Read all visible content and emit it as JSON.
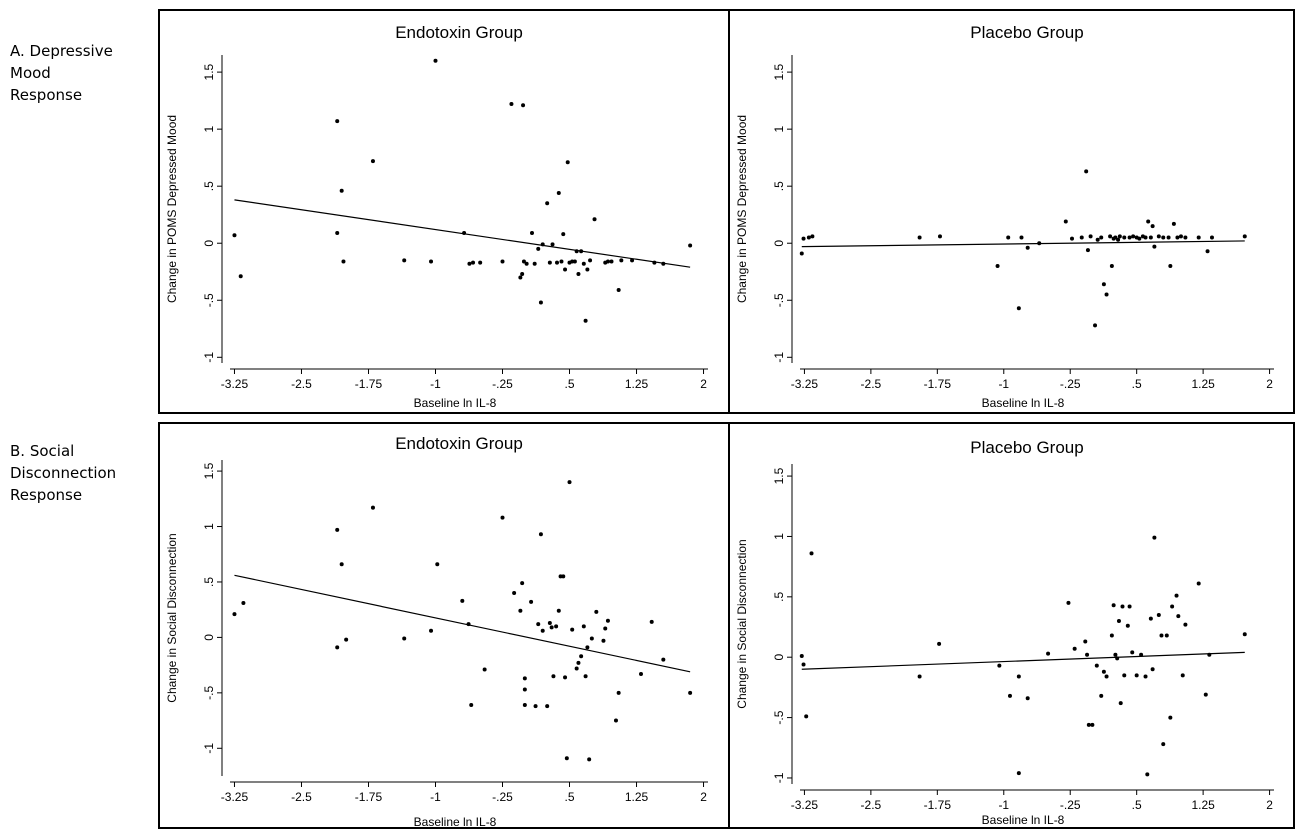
{
  "row_labels": {
    "a": [
      "A. Depressive",
      "Mood",
      "Response"
    ],
    "b": [
      "B. Social",
      "Disconnection",
      "Response"
    ]
  },
  "chart_data": [
    {
      "type": "scatter",
      "title": "Endotoxin Group",
      "xlabel": "Baseline ln IL-8",
      "ylabel": "Change in POMS Depressed Mood",
      "xlim": [
        -3.3,
        2.05
      ],
      "ylim": [
        -1.05,
        1.65
      ],
      "xticks": [
        -3.25,
        -2.5,
        -1.75,
        -1,
        -0.25,
        0.5,
        1.25,
        2
      ],
      "xtick_labels": [
        "-3.25",
        "-2.5",
        "-1.75",
        "-1",
        "-.25",
        ".5",
        "1.25",
        "2"
      ],
      "yticks": [
        -1,
        -0.5,
        0,
        0.5,
        1,
        1.5
      ],
      "ytick_labels": [
        "-1",
        "-.5",
        "0",
        ".5",
        "1",
        "1.5"
      ],
      "fit_line": [
        [
          -3.25,
          0.38
        ],
        [
          1.85,
          -0.21
        ]
      ],
      "points": [
        [
          -3.25,
          0.07
        ],
        [
          -3.18,
          -0.29
        ],
        [
          -2.1,
          1.07
        ],
        [
          -2.05,
          0.46
        ],
        [
          -2.1,
          0.09
        ],
        [
          -2.03,
          -0.16
        ],
        [
          -1.7,
          0.72
        ],
        [
          -1.35,
          -0.15
        ],
        [
          -1.05,
          -0.16
        ],
        [
          -1.0,
          1.6
        ],
        [
          -0.68,
          0.09
        ],
        [
          -0.62,
          -0.18
        ],
        [
          -0.58,
          -0.17
        ],
        [
          -0.5,
          -0.17
        ],
        [
          -0.25,
          -0.16
        ],
        [
          -0.15,
          1.22
        ],
        [
          -0.02,
          1.21
        ],
        [
          -0.05,
          -0.3
        ],
        [
          -0.03,
          -0.27
        ],
        [
          -0.01,
          -0.16
        ],
        [
          0.02,
          -0.18
        ],
        [
          0.08,
          0.09
        ],
        [
          0.11,
          -0.18
        ],
        [
          0.15,
          -0.05
        ],
        [
          0.18,
          -0.52
        ],
        [
          0.2,
          -0.01
        ],
        [
          0.25,
          0.35
        ],
        [
          0.28,
          -0.17
        ],
        [
          0.31,
          -0.01
        ],
        [
          0.36,
          -0.17
        ],
        [
          0.38,
          0.44
        ],
        [
          0.41,
          -0.16
        ],
        [
          0.43,
          0.08
        ],
        [
          0.45,
          -0.23
        ],
        [
          0.48,
          0.71
        ],
        [
          0.5,
          -0.17
        ],
        [
          0.53,
          -0.16
        ],
        [
          0.56,
          -0.16
        ],
        [
          0.58,
          -0.07
        ],
        [
          0.6,
          -0.27
        ],
        [
          0.63,
          -0.07
        ],
        [
          0.66,
          -0.18
        ],
        [
          0.68,
          -0.68
        ],
        [
          0.7,
          -0.23
        ],
        [
          0.73,
          -0.15
        ],
        [
          0.78,
          0.21
        ],
        [
          0.9,
          -0.17
        ],
        [
          0.93,
          -0.16
        ],
        [
          0.97,
          -0.16
        ],
        [
          1.05,
          -0.41
        ],
        [
          1.08,
          -0.15
        ],
        [
          1.2,
          -0.15
        ],
        [
          1.45,
          -0.17
        ],
        [
          1.55,
          -0.18
        ],
        [
          1.85,
          -0.02
        ]
      ]
    },
    {
      "type": "scatter",
      "title": "Placebo Group",
      "xlabel": "Baseline ln IL-8",
      "ylabel": "Change in POMS Depressed Mood",
      "xlim": [
        -3.3,
        2.05
      ],
      "ylim": [
        -1.05,
        1.65
      ],
      "xticks": [
        -3.25,
        -2.5,
        -1.75,
        -1,
        -0.25,
        0.5,
        1.25,
        2
      ],
      "xtick_labels": [
        "-3.25",
        "-2.5",
        "-1.75",
        "-1",
        "-.25",
        ".5",
        "1.25",
        "2"
      ],
      "yticks": [
        -1,
        -0.5,
        0,
        0.5,
        1,
        1.5
      ],
      "ytick_labels": [
        "-1",
        "-.5",
        "0",
        ".5",
        "1",
        "1.5"
      ],
      "fit_line": [
        [
          -3.28,
          -0.03
        ],
        [
          1.72,
          0.02
        ]
      ],
      "points": [
        [
          -3.28,
          -0.09
        ],
        [
          -3.26,
          0.04
        ],
        [
          -3.2,
          0.05
        ],
        [
          -3.16,
          0.06
        ],
        [
          -1.95,
          0.05
        ],
        [
          -1.72,
          0.06
        ],
        [
          -1.07,
          -0.2
        ],
        [
          -0.95,
          0.05
        ],
        [
          -0.8,
          0.05
        ],
        [
          -0.83,
          -0.57
        ],
        [
          -0.73,
          -0.04
        ],
        [
          -0.6,
          0.0
        ],
        [
          -0.3,
          0.19
        ],
        [
          -0.23,
          0.04
        ],
        [
          -0.12,
          0.05
        ],
        [
          -0.07,
          0.63
        ],
        [
          -0.05,
          -0.06
        ],
        [
          -0.02,
          0.06
        ],
        [
          0.03,
          -0.72
        ],
        [
          0.06,
          0.03
        ],
        [
          0.1,
          0.05
        ],
        [
          0.13,
          -0.36
        ],
        [
          0.16,
          -0.45
        ],
        [
          0.2,
          0.06
        ],
        [
          0.22,
          -0.2
        ],
        [
          0.24,
          0.04
        ],
        [
          0.26,
          0.05
        ],
        [
          0.29,
          0.03
        ],
        [
          0.31,
          0.06
        ],
        [
          0.36,
          0.05
        ],
        [
          0.42,
          0.05
        ],
        [
          0.46,
          0.06
        ],
        [
          0.5,
          0.05
        ],
        [
          0.53,
          0.04
        ],
        [
          0.57,
          0.06
        ],
        [
          0.6,
          0.05
        ],
        [
          0.63,
          0.19
        ],
        [
          0.66,
          0.05
        ],
        [
          0.68,
          0.15
        ],
        [
          0.7,
          -0.03
        ],
        [
          0.75,
          0.06
        ],
        [
          0.8,
          0.05
        ],
        [
          0.86,
          0.05
        ],
        [
          0.88,
          -0.2
        ],
        [
          0.92,
          0.17
        ],
        [
          0.96,
          0.05
        ],
        [
          1.0,
          0.06
        ],
        [
          1.05,
          0.05
        ],
        [
          1.2,
          0.05
        ],
        [
          1.3,
          -0.07
        ],
        [
          1.35,
          0.05
        ],
        [
          1.72,
          0.06
        ]
      ]
    },
    {
      "type": "scatter",
      "title": "Endotoxin Group",
      "xlabel": "Baseline ln IL-8",
      "ylabel": "Change in Social Disconnection",
      "xlim": [
        -3.3,
        2.05
      ],
      "ylim": [
        -1.25,
        1.6
      ],
      "xticks": [
        -3.25,
        -2.5,
        -1.75,
        -1,
        -0.25,
        0.5,
        1.25,
        2
      ],
      "xtick_labels": [
        "-3.25",
        "-2.5",
        "-1.75",
        "-1",
        "-.25",
        ".5",
        "1.25",
        "2"
      ],
      "yticks": [
        -1,
        -0.5,
        0,
        0.5,
        1,
        1.5
      ],
      "ytick_labels": [
        "-1",
        "-.5",
        "0",
        ".5",
        "1",
        "1.5"
      ],
      "fit_line": [
        [
          -3.25,
          0.56
        ],
        [
          1.85,
          -0.31
        ]
      ],
      "points": [
        [
          -3.25,
          0.21
        ],
        [
          -3.15,
          0.31
        ],
        [
          -2.1,
          0.97
        ],
        [
          -2.05,
          0.66
        ],
        [
          -2.1,
          -0.09
        ],
        [
          -2.0,
          -0.02
        ],
        [
          -1.7,
          1.17
        ],
        [
          -1.35,
          -0.01
        ],
        [
          -1.05,
          0.06
        ],
        [
          -0.98,
          0.66
        ],
        [
          -0.7,
          0.33
        ],
        [
          -0.63,
          0.12
        ],
        [
          -0.6,
          -0.61
        ],
        [
          -0.45,
          -0.29
        ],
        [
          -0.25,
          1.08
        ],
        [
          -0.12,
          0.4
        ],
        [
          -0.05,
          0.24
        ],
        [
          -0.03,
          0.49
        ],
        [
          0.0,
          -0.37
        ],
        [
          0.0,
          -0.47
        ],
        [
          0.0,
          -0.61
        ],
        [
          0.07,
          0.32
        ],
        [
          0.12,
          -0.62
        ],
        [
          0.15,
          0.12
        ],
        [
          0.18,
          0.93
        ],
        [
          0.2,
          0.06
        ],
        [
          0.25,
          -0.62
        ],
        [
          0.28,
          0.13
        ],
        [
          0.3,
          0.09
        ],
        [
          0.32,
          -0.35
        ],
        [
          0.35,
          0.1
        ],
        [
          0.38,
          0.24
        ],
        [
          0.4,
          0.55
        ],
        [
          0.43,
          0.55
        ],
        [
          0.45,
          -0.36
        ],
        [
          0.47,
          -1.09
        ],
        [
          0.5,
          1.4
        ],
        [
          0.53,
          0.07
        ],
        [
          0.58,
          -0.28
        ],
        [
          0.6,
          -0.23
        ],
        [
          0.63,
          -0.17
        ],
        [
          0.66,
          0.1
        ],
        [
          0.68,
          -0.35
        ],
        [
          0.7,
          -0.09
        ],
        [
          0.72,
          -1.1
        ],
        [
          0.75,
          -0.01
        ],
        [
          0.8,
          0.23
        ],
        [
          0.88,
          -0.03
        ],
        [
          0.9,
          0.08
        ],
        [
          0.93,
          0.15
        ],
        [
          1.02,
          -0.75
        ],
        [
          1.05,
          -0.5
        ],
        [
          1.3,
          -0.33
        ],
        [
          1.42,
          0.14
        ],
        [
          1.55,
          -0.2
        ],
        [
          1.85,
          -0.5
        ]
      ]
    },
    {
      "type": "scatter",
      "title": "Placebo Group",
      "xlabel": "Baseline ln IL-8",
      "ylabel": "Change in Social Disconnection",
      "xlim": [
        -3.3,
        2.05
      ],
      "ylim": [
        -1.05,
        1.6
      ],
      "xticks": [
        -3.25,
        -2.5,
        -1.75,
        -1,
        -0.25,
        0.5,
        1.25,
        2
      ],
      "xtick_labels": [
        "-3.25",
        "-2.5",
        "-1.75",
        "-1",
        "-.25",
        ".5",
        "1.25",
        "2"
      ],
      "yticks": [
        -1,
        -0.5,
        0,
        0.5,
        1,
        1.5
      ],
      "ytick_labels": [
        "-1",
        "-.5",
        "0",
        ".5",
        "1",
        "1.5"
      ],
      "fit_line": [
        [
          -3.28,
          -0.1
        ],
        [
          1.72,
          0.04
        ]
      ],
      "points": [
        [
          -3.28,
          0.01
        ],
        [
          -3.26,
          -0.06
        ],
        [
          -3.23,
          -0.49
        ],
        [
          -3.17,
          0.86
        ],
        [
          -1.95,
          -0.16
        ],
        [
          -1.73,
          0.11
        ],
        [
          -1.05,
          -0.07
        ],
        [
          -0.93,
          -0.32
        ],
        [
          -0.83,
          -0.16
        ],
        [
          -0.83,
          -0.96
        ],
        [
          -0.73,
          -0.34
        ],
        [
          -0.5,
          0.03
        ],
        [
          -0.27,
          0.45
        ],
        [
          -0.2,
          0.07
        ],
        [
          -0.08,
          0.13
        ],
        [
          -0.06,
          0.02
        ],
        [
          -0.04,
          -0.56
        ],
        [
          0.0,
          -0.56
        ],
        [
          0.05,
          -0.07
        ],
        [
          0.1,
          -0.32
        ],
        [
          0.13,
          -0.12
        ],
        [
          0.16,
          -0.16
        ],
        [
          0.22,
          0.18
        ],
        [
          0.24,
          0.43
        ],
        [
          0.26,
          0.02
        ],
        [
          0.28,
          -0.01
        ],
        [
          0.3,
          0.3
        ],
        [
          0.32,
          -0.38
        ],
        [
          0.34,
          0.42
        ],
        [
          0.36,
          -0.15
        ],
        [
          0.4,
          0.26
        ],
        [
          0.42,
          0.42
        ],
        [
          0.45,
          0.04
        ],
        [
          0.5,
          -0.15
        ],
        [
          0.55,
          0.02
        ],
        [
          0.6,
          -0.16
        ],
        [
          0.62,
          -0.97
        ],
        [
          0.66,
          0.32
        ],
        [
          0.68,
          -0.1
        ],
        [
          0.7,
          0.99
        ],
        [
          0.75,
          0.35
        ],
        [
          0.78,
          0.18
        ],
        [
          0.8,
          -0.72
        ],
        [
          0.84,
          0.18
        ],
        [
          0.88,
          -0.5
        ],
        [
          0.9,
          0.42
        ],
        [
          0.95,
          0.51
        ],
        [
          0.97,
          0.34
        ],
        [
          1.02,
          -0.15
        ],
        [
          1.05,
          0.27
        ],
        [
          1.2,
          0.61
        ],
        [
          1.28,
          -0.31
        ],
        [
          1.32,
          0.02
        ],
        [
          1.72,
          0.19
        ]
      ]
    }
  ]
}
